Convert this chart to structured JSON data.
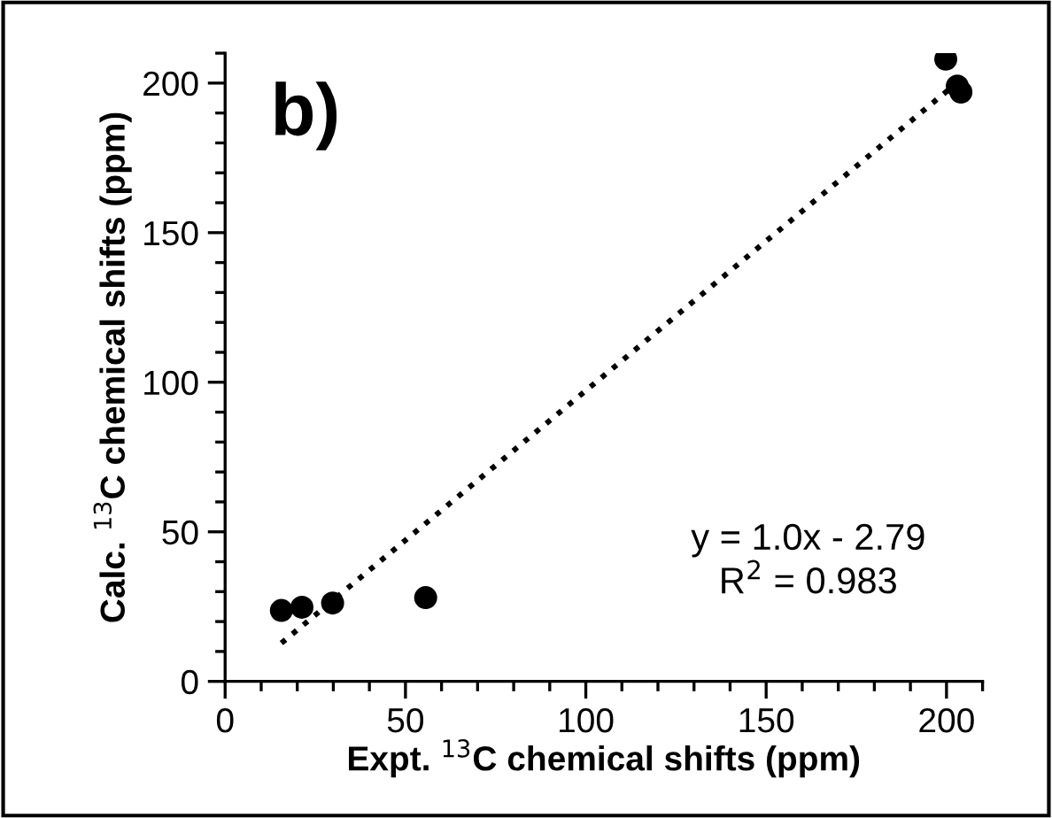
{
  "chart_data": {
    "type": "scatter",
    "xlabel": "Expt. $^{13}$C chemical shifts (ppm)",
    "ylabel": "Calc. $^{13}$C chemical shifts (ppm)",
    "x": [
      15.6,
      21.3,
      29.8,
      55.6,
      199.8,
      203,
      204
    ],
    "series": [
      {
        "color": "#000000",
        "marker": "circle",
        "values": [
          23.7,
          24.8,
          26.2,
          28,
          208,
          199,
          197
        ]
      },
      {
        "type": "line",
        "color": "#000000",
        "line_style": "dotted",
        "marker": "none",
        "x": [
          15.6,
          204
        ],
        "values": [
          12.8,
          201.2
        ]
      }
    ],
    "xlim": [
      0,
      210
    ],
    "ylim": [
      0,
      210
    ],
    "xticks": [
      0,
      50,
      100,
      150,
      200
    ],
    "yticks": [
      0,
      50,
      100,
      150,
      200
    ],
    "grid": false,
    "legend": false,
    "annotations": [
      "b)",
      "y = 1.0x - 2.79",
      "R$^{2}$ = 0.983"
    ]
  }
}
